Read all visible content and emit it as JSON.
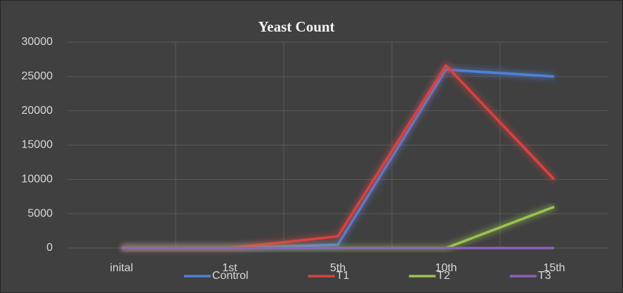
{
  "chart_data": {
    "type": "line",
    "title": "Yeast Count",
    "categories": [
      "inital",
      "1st",
      "5th",
      "10th",
      "15th"
    ],
    "series": [
      {
        "name": "Control",
        "color": "#4f81d8",
        "values": [
          0,
          0,
          500,
          26000,
          25000
        ]
      },
      {
        "name": "T1",
        "color": "#d9423f",
        "values": [
          0,
          0,
          1700,
          26600,
          10000
        ]
      },
      {
        "name": "T2",
        "color": "#9bc34f",
        "values": [
          0,
          0,
          0,
          0,
          6000
        ]
      },
      {
        "name": "T3",
        "color": "#8a62b8",
        "values": [
          0,
          0,
          0,
          0,
          0
        ]
      }
    ],
    "ylim": [
      0,
      30000
    ],
    "yticks": [
      0,
      5000,
      10000,
      15000,
      20000,
      25000,
      30000
    ],
    "grid": true,
    "legend": "bottom"
  }
}
